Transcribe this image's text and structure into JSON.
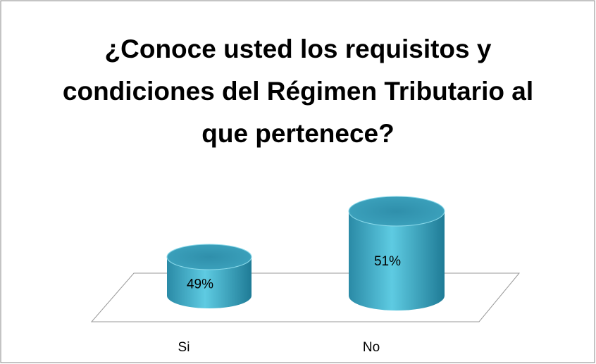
{
  "chart_data": {
    "type": "cylinder",
    "title": "¿Conoce usted los requisitos y condiciones del Régimen Tributario al que pertenece?",
    "categories": [
      "Si",
      "No"
    ],
    "values": [
      49,
      51
    ],
    "value_labels": [
      "49%",
      "51%"
    ],
    "color": "#3aa3bf"
  }
}
